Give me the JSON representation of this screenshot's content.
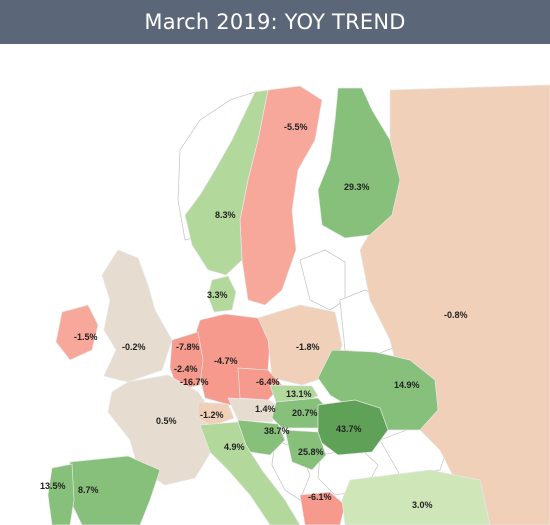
{
  "title": "March 2019: YOY TREND",
  "colors": {
    "header_bg": "#5b6779",
    "strong_green": "#5fa257",
    "medium_green": "#86c07a",
    "light_green": "#b3d89c",
    "pale_green": "#cfe6b9",
    "beige": "#e6dccf",
    "peach": "#f0d0b8",
    "pink": "#f7a89a",
    "salmon": "#f59a8d"
  },
  "regions": [
    {
      "id": "finland",
      "value": "29.3%"
    },
    {
      "id": "sweden",
      "value": "-5.5%"
    },
    {
      "id": "norway",
      "value": "8.3%"
    },
    {
      "id": "russia",
      "value": "-0.8%"
    },
    {
      "id": "denmark",
      "value": "3.3%"
    },
    {
      "id": "ireland",
      "value": "-1.5%"
    },
    {
      "id": "uk",
      "value": "-0.2%"
    },
    {
      "id": "netherlands",
      "value": "-7.8%"
    },
    {
      "id": "belgium",
      "value": "-2.4%"
    },
    {
      "id": "luxembourg",
      "value": "-16.7%"
    },
    {
      "id": "germany",
      "value": "-4.7%"
    },
    {
      "id": "poland",
      "value": "-1.8%"
    },
    {
      "id": "czechia",
      "value": "-6.4%"
    },
    {
      "id": "ukraine",
      "value": "14.9%"
    },
    {
      "id": "france",
      "value": "0.5%"
    },
    {
      "id": "switzerland",
      "value": "-1.2%"
    },
    {
      "id": "austria",
      "value": "1.4%"
    },
    {
      "id": "slovakia",
      "value": "13.1%"
    },
    {
      "id": "hungary",
      "value": "20.7%"
    },
    {
      "id": "romania",
      "value": "43.7%"
    },
    {
      "id": "slovenia_croatia",
      "value": "38.7%"
    },
    {
      "id": "serbia",
      "value": "25.8%"
    },
    {
      "id": "italy",
      "value": "4.9%"
    },
    {
      "id": "portugal",
      "value": "13.5%"
    },
    {
      "id": "spain",
      "value": "8.7%"
    },
    {
      "id": "greece",
      "value": "-6.1%"
    },
    {
      "id": "turkey",
      "value": "3.0%"
    }
  ]
}
